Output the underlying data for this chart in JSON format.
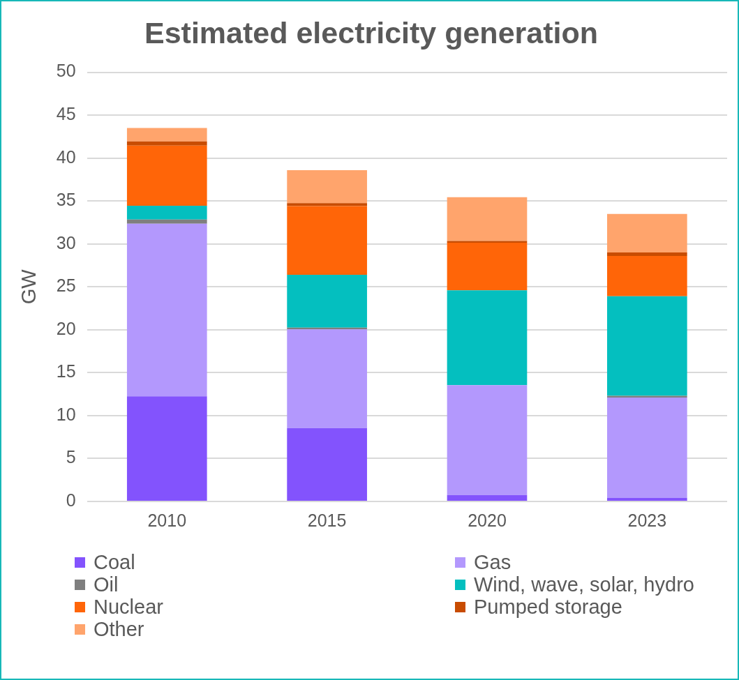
{
  "chart_data": {
    "type": "bar",
    "title": "Estimated electricity generation",
    "ylabel": "GW",
    "categories": [
      "2010",
      "2015",
      "2020",
      "2023"
    ],
    "stacked": true,
    "ylim": [
      0,
      50
    ],
    "yticks": [
      0,
      5,
      10,
      15,
      20,
      25,
      30,
      35,
      40,
      45,
      50
    ],
    "grid": "y",
    "legend": "bottom",
    "series": [
      {
        "name": "Coal",
        "color": "#8353fd",
        "values": [
          12.25,
          8.55,
          0.75,
          0.4
        ]
      },
      {
        "name": "Gas",
        "color": "#b398fd",
        "values": [
          20.1,
          11.5,
          12.8,
          11.7
        ]
      },
      {
        "name": "Oil",
        "color": "#7f7f7f",
        "values": [
          0.5,
          0.2,
          0,
          0.2
        ]
      },
      {
        "name": "Wind, wave, solar, hydro",
        "color": "#04bfbf",
        "values": [
          1.6,
          6.15,
          11.05,
          11.6
        ]
      },
      {
        "name": "Nuclear",
        "color": "#ff6508",
        "values": [
          7.0,
          8.0,
          5.55,
          4.7
        ]
      },
      {
        "name": "Pumped storage",
        "color": "#c84c01",
        "values": [
          0.5,
          0.35,
          0.2,
          0.4
        ]
      },
      {
        "name": "Other",
        "color": "#ffa46c",
        "values": [
          1.55,
          3.85,
          5.1,
          4.5
        ]
      }
    ]
  }
}
